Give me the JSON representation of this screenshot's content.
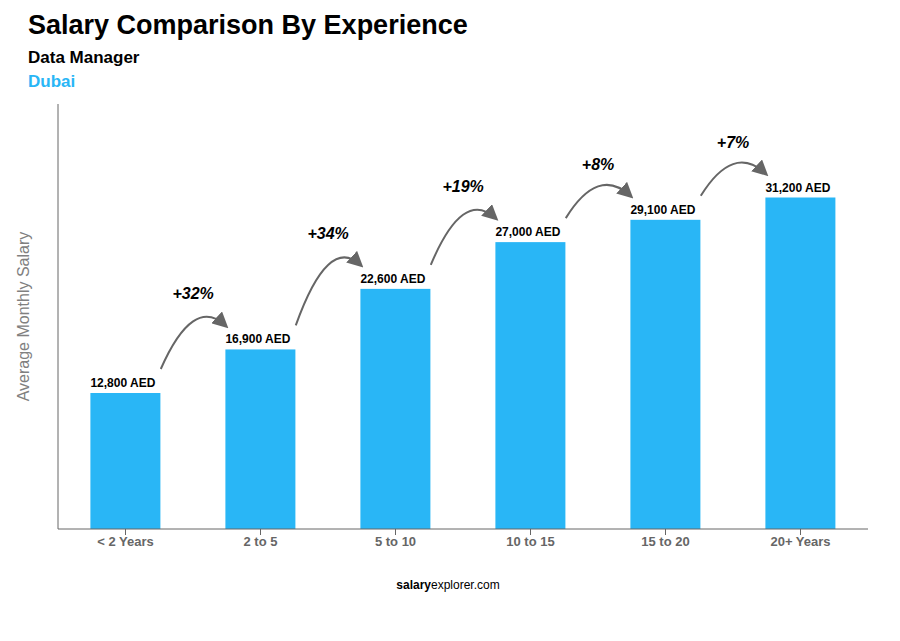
{
  "chart_data": {
    "type": "bar",
    "title": "Salary Comparison By Experience",
    "subtitle": "Data Manager",
    "annotations": [
      "Dubai"
    ],
    "watermark": [
      "salary",
      "explorer.com"
    ],
    "ylabel": "Average Monthly Salary",
    "categories": [
      "< 2 Years",
      "2 to 5",
      "5 to 10",
      "10 to 15",
      "15 to 20",
      "20+ Years"
    ],
    "values": [
      12800,
      16900,
      22600,
      27000,
      29100,
      31200
    ],
    "value_labels": [
      "12,800 AED",
      "16,900 AED",
      "22,600 AED",
      "27,000 AED",
      "29,100 AED",
      "31,200 AED"
    ],
    "data_labels": true,
    "change_labels": [
      "+32%",
      "+34%",
      "+19%",
      "+8%",
      "+7%"
    ],
    "color": "#29B6F6",
    "ylim": [
      0,
      40000
    ],
    "tick_labels": "x",
    "grid": false
  }
}
